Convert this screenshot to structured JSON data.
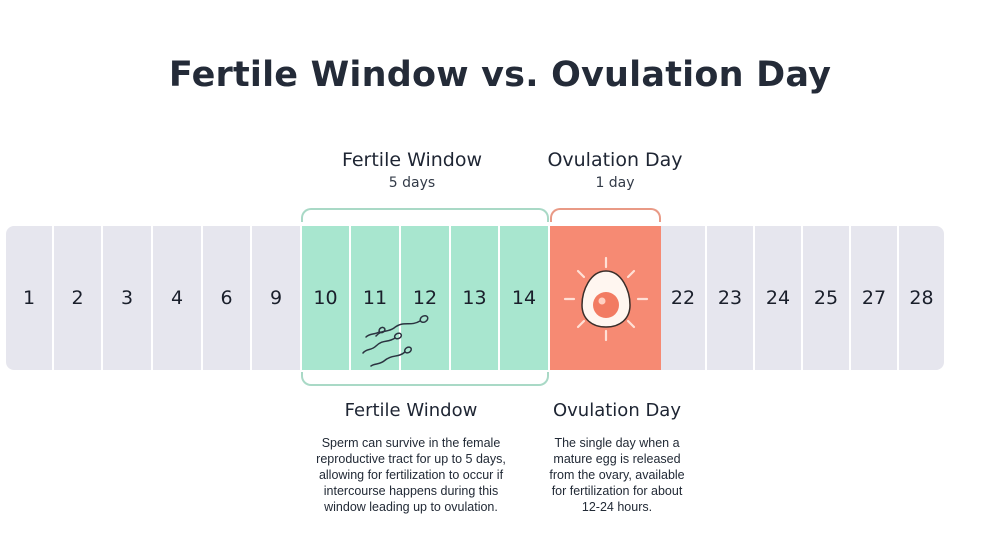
{
  "title": "Fertile Window vs. Ovulation Day",
  "labels": {
    "fertile_top_title": "Fertile Window",
    "fertile_top_sub": "5 days",
    "ovulation_top_title": "Ovulation Day",
    "ovulation_top_sub": "1 day",
    "fertile_bottom_title": "Fertile Window",
    "ovulation_bottom_title": "Ovulation Day"
  },
  "descriptions": {
    "fertile": "Sperm can survive in the female reproductive tract for up to 5 days, allowing for fertilization to occur if intercourse happens during this window leading up to ovulation.",
    "ovulation": "The single day when a mature egg is released from the ovary, available for fertilization for about 12-24 hours."
  },
  "days": [
    {
      "label": "1",
      "type": "plain"
    },
    {
      "label": "2",
      "type": "plain"
    },
    {
      "label": "3",
      "type": "plain"
    },
    {
      "label": "4",
      "type": "plain"
    },
    {
      "label": "6",
      "type": "plain"
    },
    {
      "label": "9",
      "type": "plain"
    },
    {
      "label": "10",
      "type": "fertile"
    },
    {
      "label": "11",
      "type": "fertile"
    },
    {
      "label": "12",
      "type": "fertile"
    },
    {
      "label": "13",
      "type": "fertile"
    },
    {
      "label": "14",
      "type": "fertile"
    },
    {
      "label": "",
      "type": "ovulation"
    },
    {
      "label": "22",
      "type": "plain"
    },
    {
      "label": "23",
      "type": "plain"
    },
    {
      "label": "24",
      "type": "plain"
    },
    {
      "label": "25",
      "type": "plain"
    },
    {
      "label": "27",
      "type": "plain"
    },
    {
      "label": "28",
      "type": "plain"
    }
  ],
  "icons": {
    "sperm": "sperm-icon",
    "egg": "egg-icon"
  },
  "colors": {
    "fertile": "#a8e6cf",
    "fertile_bracket": "#a9d9c6",
    "ovulation": "#f68a73",
    "ovulation_bracket": "#e99a86",
    "plain": "#e6e6ee"
  }
}
